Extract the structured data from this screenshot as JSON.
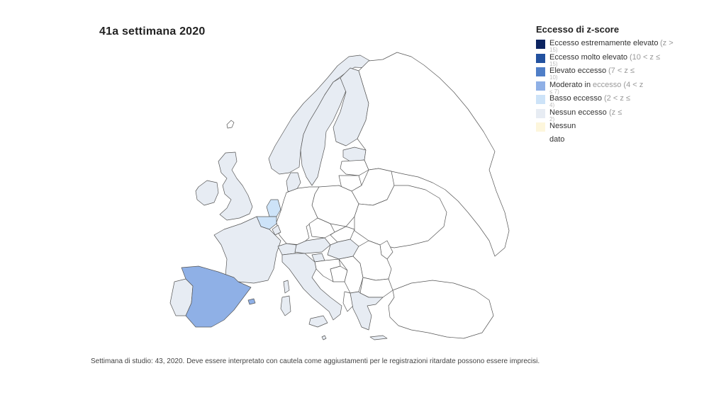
{
  "title": "41a settimana 2020",
  "legend": {
    "title": "Eccesso di z-score",
    "items": [
      {
        "label": "Eccesso estremamente elevato",
        "range": "(z >",
        "range2": "15)",
        "color": "#0c2461"
      },
      {
        "label": "Eccesso molto elevato",
        "range": "(10 < z ≤",
        "range2": "15)",
        "color": "#22519f"
      },
      {
        "label": "Elevato eccesso",
        "range": "(7 < z ≤",
        "range2": "10)",
        "color": "#4f7ec7"
      },
      {
        "label": "Moderato in",
        "range": "eccesso (4 < z",
        "range2": "≤ 7)",
        "color": "#8fb0e6"
      },
      {
        "label": "Basso eccesso",
        "range": "(2 < z ≤",
        "range2": "4)",
        "color": "#cde3f8"
      },
      {
        "label": "Nessun eccesso",
        "range": "(z ≤",
        "range2": "2)",
        "color": "#e7ecf3"
      },
      {
        "label": "Nessun",
        "label2": "dato",
        "range": "",
        "range2": "",
        "color": "#fdf6dc"
      }
    ]
  },
  "map": {
    "no_data_color": "#ffffff",
    "regions": [
      {
        "name": "Spain",
        "category": "Moderato in eccesso",
        "color": "#8fb0e6"
      },
      {
        "name": "Netherlands",
        "category": "Basso eccesso",
        "color": "#cde3f8"
      },
      {
        "name": "Belgium",
        "category": "Basso eccesso",
        "color": "#cde3f8"
      },
      {
        "name": "Portugal",
        "category": "Nessun eccesso",
        "color": "#e7ecf3"
      },
      {
        "name": "France",
        "category": "Nessun eccesso",
        "color": "#e7ecf3"
      },
      {
        "name": "Italy",
        "category": "Nessun eccesso",
        "color": "#e7ecf3"
      },
      {
        "name": "United Kingdom",
        "category": "Nessun eccesso",
        "color": "#e7ecf3"
      },
      {
        "name": "Ireland",
        "category": "Nessun eccesso",
        "color": "#e7ecf3"
      },
      {
        "name": "Norway",
        "category": "Nessun eccesso",
        "color": "#e7ecf3"
      },
      {
        "name": "Sweden",
        "category": "Nessun eccesso",
        "color": "#e7ecf3"
      },
      {
        "name": "Finland",
        "category": "Nessun eccesso",
        "color": "#e7ecf3"
      },
      {
        "name": "Denmark",
        "category": "Nessun eccesso",
        "color": "#e7ecf3"
      },
      {
        "name": "Estonia",
        "category": "Nessun eccesso",
        "color": "#e7ecf3"
      },
      {
        "name": "Switzerland",
        "category": "Nessun eccesso",
        "color": "#e7ecf3"
      },
      {
        "name": "Austria",
        "category": "Nessun eccesso",
        "color": "#e7ecf3"
      },
      {
        "name": "Hungary",
        "category": "Nessun eccesso",
        "color": "#e7ecf3"
      },
      {
        "name": "Slovenia",
        "category": "Nessun eccesso",
        "color": "#e7ecf3"
      },
      {
        "name": "Greece",
        "category": "Nessun eccesso",
        "color": "#e7ecf3"
      },
      {
        "name": "Malta",
        "category": "Nessun eccesso",
        "color": "#e7ecf3"
      },
      {
        "name": "Luxembourg",
        "category": "Nessun eccesso",
        "color": "#e7ecf3"
      },
      {
        "name": "Germany",
        "category": "Nessun dato",
        "color": "#ffffff"
      },
      {
        "name": "Poland",
        "category": "Nessun dato",
        "color": "#ffffff"
      },
      {
        "name": "Czechia",
        "category": "Nessun dato",
        "color": "#ffffff"
      },
      {
        "name": "Slovakia",
        "category": "Nessun dato",
        "color": "#ffffff"
      },
      {
        "name": "Latvia",
        "category": "Nessun dato",
        "color": "#ffffff"
      },
      {
        "name": "Lithuania",
        "category": "Nessun dato",
        "color": "#ffffff"
      },
      {
        "name": "Belarus",
        "category": "Nessun dato",
        "color": "#ffffff"
      },
      {
        "name": "Ukraine",
        "category": "Nessun dato",
        "color": "#ffffff"
      },
      {
        "name": "Russia",
        "category": "Nessun dato",
        "color": "#ffffff"
      },
      {
        "name": "Romania",
        "category": "Nessun dato",
        "color": "#ffffff"
      },
      {
        "name": "Bulgaria",
        "category": "Nessun dato",
        "color": "#ffffff"
      },
      {
        "name": "Serbia",
        "category": "Nessun dato",
        "color": "#ffffff"
      },
      {
        "name": "Croatia",
        "category": "Nessun dato",
        "color": "#ffffff"
      },
      {
        "name": "Bosnia and Herzegovina",
        "category": "Nessun dato",
        "color": "#ffffff"
      },
      {
        "name": "Albania",
        "category": "Nessun dato",
        "color": "#ffffff"
      },
      {
        "name": "Turkey",
        "category": "Nessun dato",
        "color": "#ffffff"
      },
      {
        "name": "Iceland",
        "category": "Nessun dato",
        "color": "#ffffff"
      },
      {
        "name": "Moldova",
        "category": "Nessun dato",
        "color": "#ffffff"
      }
    ]
  },
  "footnote": "Settimana di studio: 43, 2020. Deve essere interpretato con cautela come aggiustamenti per le registrazioni ritardate possono essere imprecisi."
}
